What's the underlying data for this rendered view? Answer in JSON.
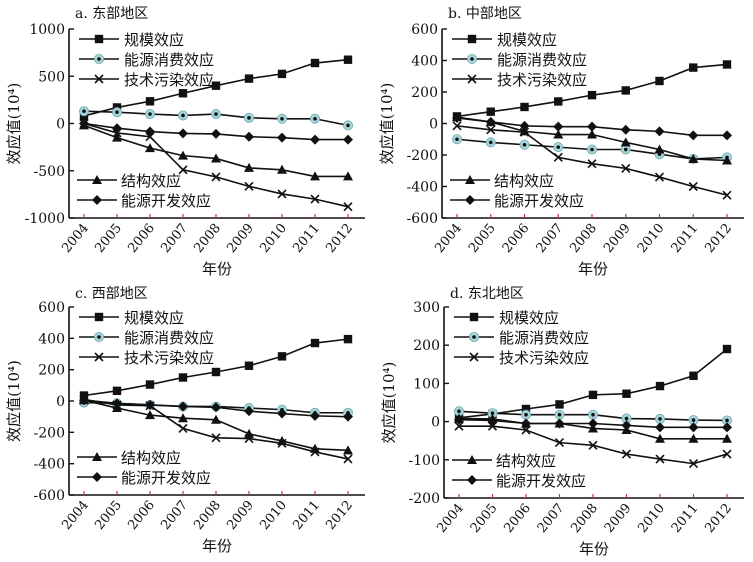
{
  "figure": {
    "xlabel": "年份",
    "ylabel": "效应值(10⁴)",
    "series_names": [
      "规模效应",
      "能源消费效应",
      "技术污染效应",
      "结构效应",
      "能源开发效应"
    ],
    "marker_names": [
      "square",
      "circle-dot",
      "x",
      "triangle",
      "diamond"
    ]
  },
  "chart_data": [
    {
      "type": "line",
      "title": "a. 东部地区",
      "xlabel": "年份",
      "ylabel": "效应值(10⁴)",
      "x": [
        "2004",
        "2005",
        "2006",
        "2007",
        "2008",
        "2009",
        "2010",
        "2011",
        "2012"
      ],
      "ylim": [
        -1000,
        1000
      ],
      "yticks": [
        1000,
        500,
        0,
        -500,
        -1000
      ],
      "ytick_labels": [
        "1000",
        "500",
        "0",
        "-500",
        "-1000"
      ],
      "legend_top": [
        "规模效应",
        "能源消费效应",
        "技术污染效应"
      ],
      "legend_bottom": [
        "结构效应",
        "能源开发效应"
      ],
      "series": [
        {
          "name": "规模效应",
          "marker": "square",
          "values": [
            80,
            170,
            235,
            320,
            400,
            475,
            525,
            640,
            675
          ]
        },
        {
          "name": "能源消费效应",
          "marker": "circle-dot",
          "values": [
            130,
            120,
            100,
            85,
            100,
            60,
            50,
            50,
            -20
          ]
        },
        {
          "name": "技术污染效应",
          "marker": "x",
          "values": [
            0,
            -100,
            -140,
            -490,
            -565,
            -665,
            -745,
            -800,
            -880
          ]
        },
        {
          "name": "结构效应",
          "marker": "triangle",
          "values": [
            -20,
            -150,
            -260,
            -340,
            -370,
            -470,
            -490,
            -560,
            -560
          ]
        },
        {
          "name": "能源开发效应",
          "marker": "diamond",
          "values": [
            0,
            -50,
            -85,
            -105,
            -110,
            -140,
            -150,
            -170,
            -170
          ]
        }
      ]
    },
    {
      "type": "line",
      "title": "b. 中部地区",
      "xlabel": "年份",
      "ylabel": "效应值(10⁴)",
      "x": [
        "2004",
        "2005",
        "2006",
        "2007",
        "2008",
        "2009",
        "2010",
        "2011",
        "2012"
      ],
      "ylim": [
        -600,
        600
      ],
      "yticks": [
        600,
        400,
        200,
        0,
        -200,
        -400,
        -600
      ],
      "ytick_labels": [
        "600",
        "400",
        "200",
        "0",
        "-200",
        "-400",
        "-600"
      ],
      "legend_top": [
        "规模效应",
        "能源消费效应",
        "技术污染效应"
      ],
      "legend_bottom": [
        "结构效应",
        "能源开发效应"
      ],
      "series": [
        {
          "name": "规模效应",
          "marker": "square",
          "values": [
            45,
            75,
            105,
            140,
            180,
            210,
            270,
            355,
            375
          ]
        },
        {
          "name": "能源消费效应",
          "marker": "circle-dot",
          "values": [
            -100,
            -120,
            -135,
            -150,
            -165,
            -165,
            -195,
            -225,
            -215
          ]
        },
        {
          "name": "技术污染效应",
          "marker": "x",
          "values": [
            -15,
            -40,
            -55,
            -215,
            -255,
            -285,
            -340,
            -400,
            -455
          ]
        },
        {
          "name": "结构效应",
          "marker": "triangle",
          "values": [
            40,
            10,
            -50,
            -70,
            -70,
            -120,
            -165,
            -225,
            -235
          ]
        },
        {
          "name": "能源开发效应",
          "marker": "diamond",
          "values": [
            35,
            10,
            -15,
            -20,
            -20,
            -40,
            -50,
            -75,
            -75
          ]
        }
      ]
    },
    {
      "type": "line",
      "title": "c. 西部地区",
      "xlabel": "年份",
      "ylabel": "效应值(10⁴)",
      "x": [
        "2004",
        "2005",
        "2006",
        "2007",
        "2008",
        "2009",
        "2010",
        "2011",
        "2012"
      ],
      "ylim": [
        -600,
        600
      ],
      "yticks": [
        600,
        400,
        200,
        0,
        -200,
        -400,
        -600
      ],
      "ytick_labels": [
        "600",
        "400",
        "200",
        "0",
        "-200",
        "-400",
        "-600"
      ],
      "legend_top": [
        "规模效应",
        "能源消费效应",
        "技术污染效应"
      ],
      "legend_bottom": [
        "结构效应",
        "能源开发效应"
      ],
      "series": [
        {
          "name": "规模效应",
          "marker": "square",
          "values": [
            35,
            65,
            105,
            150,
            185,
            225,
            285,
            370,
            395
          ]
        },
        {
          "name": "能源消费效应",
          "marker": "circle-dot",
          "values": [
            -10,
            -15,
            -25,
            -35,
            -35,
            -45,
            -55,
            -75,
            -75
          ]
        },
        {
          "name": "技术污染效应",
          "marker": "x",
          "values": [
            10,
            -25,
            -30,
            -175,
            -235,
            -240,
            -270,
            -325,
            -370
          ]
        },
        {
          "name": "结构效应",
          "marker": "triangle",
          "values": [
            5,
            -45,
            -90,
            -110,
            -120,
            -210,
            -255,
            -305,
            -315
          ]
        },
        {
          "name": "能源开发效应",
          "marker": "diamond",
          "values": [
            5,
            -15,
            -25,
            -35,
            -40,
            -65,
            -80,
            -95,
            -100
          ]
        }
      ]
    },
    {
      "type": "line",
      "title": "d. 东北地区",
      "xlabel": "年份",
      "ylabel": "效应值(10⁴)",
      "x": [
        "2004",
        "2005",
        "2006",
        "2007",
        "2008",
        "2009",
        "2010",
        "2011",
        "2012"
      ],
      "ylim": [
        -200,
        300
      ],
      "yticks": [
        300,
        200,
        100,
        0,
        -100,
        -200
      ],
      "ytick_labels": [
        "300",
        "200",
        "100",
        "0",
        "-100",
        "-200"
      ],
      "legend_top": [
        "规模效应",
        "能源消费效应",
        "技术污染效应"
      ],
      "legend_bottom": [
        "结构效应",
        "能源开发效应"
      ],
      "series": [
        {
          "name": "规模效应",
          "marker": "square",
          "values": [
            10,
            20,
            33,
            45,
            70,
            73,
            93,
            120,
            190
          ]
        },
        {
          "name": "能源消费效应",
          "marker": "circle-dot",
          "values": [
            27,
            22,
            18,
            18,
            18,
            8,
            7,
            4,
            3
          ]
        },
        {
          "name": "技术污染效应",
          "marker": "x",
          "values": [
            -12,
            -12,
            -22,
            -55,
            -62,
            -85,
            -98,
            -110,
            -85
          ]
        },
        {
          "name": "结构效应",
          "marker": "triangle",
          "values": [
            8,
            7,
            -5,
            -5,
            -18,
            -22,
            -45,
            -45,
            -45
          ]
        },
        {
          "name": "能源开发效应",
          "marker": "diamond",
          "values": [
            5,
            3,
            -5,
            -5,
            -5,
            -10,
            -15,
            -15,
            -15
          ]
        }
      ]
    }
  ]
}
